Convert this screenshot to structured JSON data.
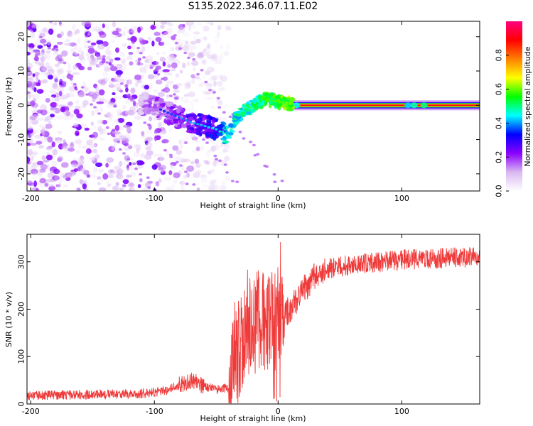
{
  "title": "S135.2022.346.07.11.E02",
  "chart_data": [
    {
      "type": "heatmap",
      "xlabel": "Height of straight line (km)",
      "ylabel": "Frequency (Hz)",
      "xlim": [
        -203,
        163
      ],
      "ylim": [
        -25,
        24.5
      ],
      "xticks": [
        -200,
        -100,
        0,
        100
      ],
      "yticks": [
        -20,
        -10,
        0,
        10,
        20
      ],
      "colorbar": {
        "label": "Normalized spectral amplitude",
        "range": [
          0.0,
          1.0
        ],
        "ticks": [
          0.0,
          0.2,
          0.4,
          0.6,
          0.8
        ],
        "tick_labels": [
          "0.0",
          "0.2",
          "0.4",
          "0.6",
          "0.8"
        ],
        "colormap": [
          "#ffffff",
          "#d9b8f0",
          "#8b00ff",
          "#0000ff",
          "#00ffff",
          "#00ff00",
          "#ffff00",
          "#ff8000",
          "#ff0000",
          "#ff0080"
        ]
      },
      "features": [
        {
          "kind": "noise",
          "x_range": [
            -203,
            -50
          ],
          "amplitude": "0.05-0.25"
        },
        {
          "kind": "signal-track",
          "points": [
            [
              -110,
              1
            ],
            [
              -90,
              -2
            ],
            [
              -70,
              -5
            ],
            [
              -50,
              -7
            ],
            [
              -40,
              -9
            ],
            [
              -35,
              -4
            ],
            [
              -25,
              -1
            ],
            [
              -15,
              1
            ],
            [
              -10,
              2
            ],
            [
              0,
              1
            ],
            [
              20,
              0
            ],
            [
              163,
              0
            ]
          ],
          "amplitude_start": 0.3,
          "amplitude_end": 1.0
        }
      ]
    },
    {
      "type": "line",
      "xlabel": "Height of straight line (km)",
      "ylabel": "SNR (10 * v/v)",
      "xlim": [
        -203,
        163
      ],
      "ylim": [
        0,
        358
      ],
      "xticks": [
        -200,
        -100,
        0,
        100
      ],
      "yticks": [
        0,
        100,
        200,
        300
      ],
      "series": [
        {
          "color": "#ef3a3a",
          "trend": {
            "x": [
              -203,
              -150,
              -110,
              -90,
              -80,
              -70,
              -60,
              -50,
              -40,
              -35,
              -30,
              -20,
              -10,
              0,
              10,
              20,
              30,
              40,
              50,
              100,
              163
            ],
            "y": [
              18,
              20,
              22,
              28,
              40,
              50,
              38,
              30,
              35,
              80,
              140,
              170,
              175,
              180,
              200,
              240,
              270,
              285,
              290,
              305,
              310
            ]
          }
        }
      ]
    }
  ]
}
